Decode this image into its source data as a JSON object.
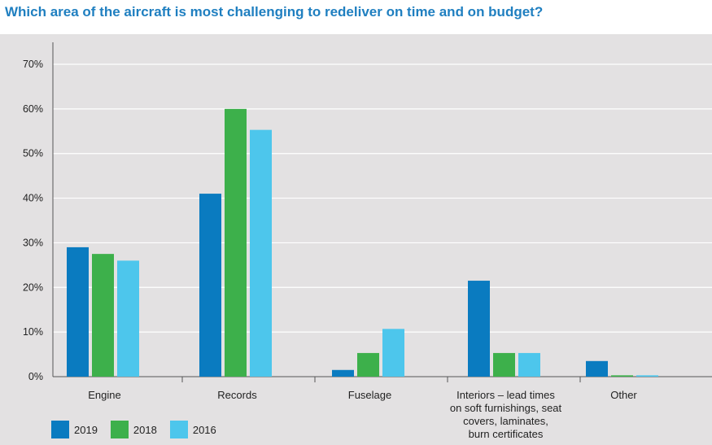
{
  "title": "Which area of the aircraft is most challenging to redeliver on time and on budget?",
  "colors": {
    "2019": "#0a7bc0",
    "2018": "#3db04b",
    "2016": "#4dc6ec",
    "grid": "#ffffff",
    "axis": "#555555"
  },
  "chart_data": {
    "type": "bar",
    "title": "Which area of the aircraft is most challenging to redeliver on time and on budget?",
    "categories": [
      "Engine",
      "Records",
      "Fuselage",
      "Interiors – lead times on soft furnishings, seat covers, laminates, burn certificates",
      "Other"
    ],
    "category_lines": [
      [
        "Engine"
      ],
      [
        "Records"
      ],
      [
        "Fuselage"
      ],
      [
        "Interiors – lead times",
        "on soft furnishings, seat",
        "covers, laminates,",
        "burn certificates"
      ],
      [
        "Other"
      ]
    ],
    "series": [
      {
        "name": "2019",
        "values": [
          29,
          41,
          1.5,
          21.5,
          3.5
        ]
      },
      {
        "name": "2018",
        "values": [
          27.5,
          60,
          5.3,
          5.3,
          0.3
        ]
      },
      {
        "name": "2016",
        "values": [
          26,
          55.3,
          10.7,
          5.3,
          0.3
        ]
      }
    ],
    "yticks": [
      "0%",
      "10%",
      "20%",
      "30%",
      "40%",
      "50%",
      "60%",
      "70%"
    ],
    "ylim": [
      0,
      70
    ],
    "grid": true,
    "legend_position": "bottom-left"
  }
}
